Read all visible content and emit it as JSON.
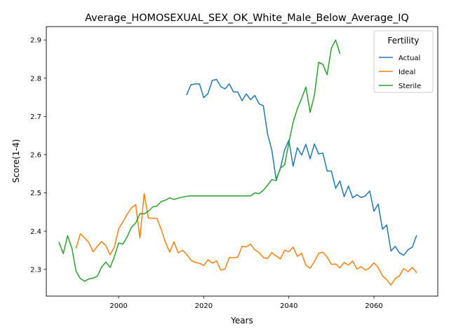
{
  "chart_data": {
    "type": "line",
    "title": "Average_HOMOSEXUAL_SEX_OK_White_Male_Below_Average_IQ",
    "xlabel": "Years",
    "ylabel": "Score(1-4)",
    "xlim": [
      1983,
      2075
    ],
    "ylim": [
      2.23,
      2.935
    ],
    "x_ticks": [
      2000,
      2020,
      2040,
      2060
    ],
    "y_ticks": [
      2.3,
      2.4,
      2.5,
      2.6,
      2.7,
      2.8,
      2.9
    ],
    "grid": false,
    "legend": {
      "title": "Fertility",
      "placement": "top-right"
    },
    "series": [
      {
        "name": "Actual",
        "color": "#1f77b4",
        "x": [
          2016,
          2017,
          2018,
          2019,
          2020,
          2021,
          2022,
          2023,
          2024,
          2025,
          2026,
          2027,
          2028,
          2029,
          2030,
          2031,
          2032,
          2033,
          2034,
          2035,
          2036,
          2037,
          2038,
          2039,
          2040,
          2041,
          2042,
          2043,
          2044,
          2045,
          2046,
          2047,
          2048,
          2049,
          2050,
          2051,
          2052,
          2053,
          2054,
          2055,
          2056,
          2057,
          2058,
          2059,
          2060,
          2061,
          2062,
          2063,
          2064,
          2065,
          2066,
          2067,
          2068,
          2069,
          2070
        ],
        "y": [
          2.757,
          2.783,
          2.785,
          2.785,
          2.749,
          2.76,
          2.794,
          2.797,
          2.778,
          2.772,
          2.785,
          2.764,
          2.764,
          2.741,
          2.759,
          2.744,
          2.755,
          2.733,
          2.728,
          2.654,
          2.612,
          2.536,
          2.563,
          2.612,
          2.638,
          2.57,
          2.618,
          2.599,
          2.627,
          2.589,
          2.628,
          2.602,
          2.604,
          2.557,
          2.557,
          2.512,
          2.531,
          2.49,
          2.518,
          2.487,
          2.495,
          2.488,
          2.492,
          2.505,
          2.452,
          2.471,
          2.405,
          2.416,
          2.348,
          2.36,
          2.343,
          2.337,
          2.351,
          2.358,
          2.388
        ]
      },
      {
        "name": "Ideal",
        "color": "#ff7f0e",
        "x": [
          1990,
          1991,
          1992,
          1993,
          1994,
          1995,
          1996,
          1997,
          1998,
          1999,
          2000,
          2001,
          2002,
          2003,
          2004,
          2005,
          2006,
          2007,
          2008,
          2009,
          2010,
          2011,
          2012,
          2013,
          2014,
          2015,
          2016,
          2017,
          2018,
          2019,
          2020,
          2021,
          2022,
          2023,
          2024,
          2025,
          2026,
          2027,
          2028,
          2029,
          2030,
          2031,
          2032,
          2033,
          2034,
          2035,
          2036,
          2037,
          2038,
          2039,
          2040,
          2041,
          2042,
          2043,
          2044,
          2045,
          2046,
          2047,
          2048,
          2049,
          2050,
          2051,
          2052,
          2053,
          2054,
          2055,
          2056,
          2057,
          2058,
          2059,
          2060,
          2061,
          2062,
          2063,
          2064,
          2065,
          2066,
          2067,
          2068,
          2069,
          2070
        ],
        "y": [
          2.356,
          2.393,
          2.382,
          2.37,
          2.346,
          2.36,
          2.373,
          2.362,
          2.338,
          2.358,
          2.406,
          2.424,
          2.444,
          2.461,
          2.469,
          2.382,
          2.498,
          2.434,
          2.434,
          2.433,
          2.405,
          2.371,
          2.345,
          2.372,
          2.343,
          2.35,
          2.339,
          2.324,
          2.318,
          2.316,
          2.31,
          2.325,
          2.316,
          2.322,
          2.298,
          2.301,
          2.331,
          2.33,
          2.332,
          2.36,
          2.359,
          2.366,
          2.351,
          2.344,
          2.331,
          2.328,
          2.344,
          2.335,
          2.327,
          2.35,
          2.346,
          2.358,
          2.334,
          2.342,
          2.311,
          2.303,
          2.32,
          2.342,
          2.345,
          2.332,
          2.313,
          2.314,
          2.304,
          2.318,
          2.311,
          2.322,
          2.301,
          2.307,
          2.298,
          2.304,
          2.317,
          2.305,
          2.283,
          2.273,
          2.259,
          2.276,
          2.283,
          2.302,
          2.294,
          2.305,
          2.292
        ]
      },
      {
        "name": "Sterile",
        "color": "#2ca02c",
        "x": [
          1986,
          1987,
          1988,
          1989,
          1990,
          1991,
          1992,
          1993,
          1994,
          1995,
          1996,
          1997,
          1998,
          1999,
          2000,
          2001,
          2002,
          2003,
          2004,
          2005,
          2006,
          2007,
          2008,
          2009,
          2010,
          2011,
          2012,
          2013,
          2014,
          2015,
          2016,
          2017,
          2018,
          2019,
          2020,
          2021,
          2022,
          2023,
          2024,
          2025,
          2026,
          2027,
          2028,
          2029,
          2030,
          2031,
          2032,
          2033,
          2034,
          2035,
          2036,
          2037,
          2038,
          2039,
          2040,
          2041,
          2042,
          2043,
          2044,
          2045,
          2046,
          2047,
          2048,
          2049,
          2050,
          2051,
          2052
        ],
        "y": [
          2.37,
          2.341,
          2.388,
          2.356,
          2.295,
          2.276,
          2.269,
          2.275,
          2.277,
          2.282,
          2.306,
          2.319,
          2.305,
          2.333,
          2.369,
          2.366,
          2.385,
          2.41,
          2.421,
          2.446,
          2.445,
          2.452,
          2.463,
          2.466,
          2.477,
          2.481,
          2.487,
          2.483,
          2.486,
          2.489,
          2.491,
          2.492,
          2.492,
          2.492,
          2.492,
          2.492,
          2.492,
          2.492,
          2.492,
          2.492,
          2.492,
          2.492,
          2.492,
          2.492,
          2.492,
          2.492,
          2.5,
          2.498,
          2.507,
          2.52,
          2.535,
          2.532,
          2.565,
          2.573,
          2.631,
          2.685,
          2.72,
          2.747,
          2.777,
          2.711,
          2.755,
          2.842,
          2.836,
          2.809,
          2.879,
          2.9,
          2.865
        ]
      }
    ]
  }
}
